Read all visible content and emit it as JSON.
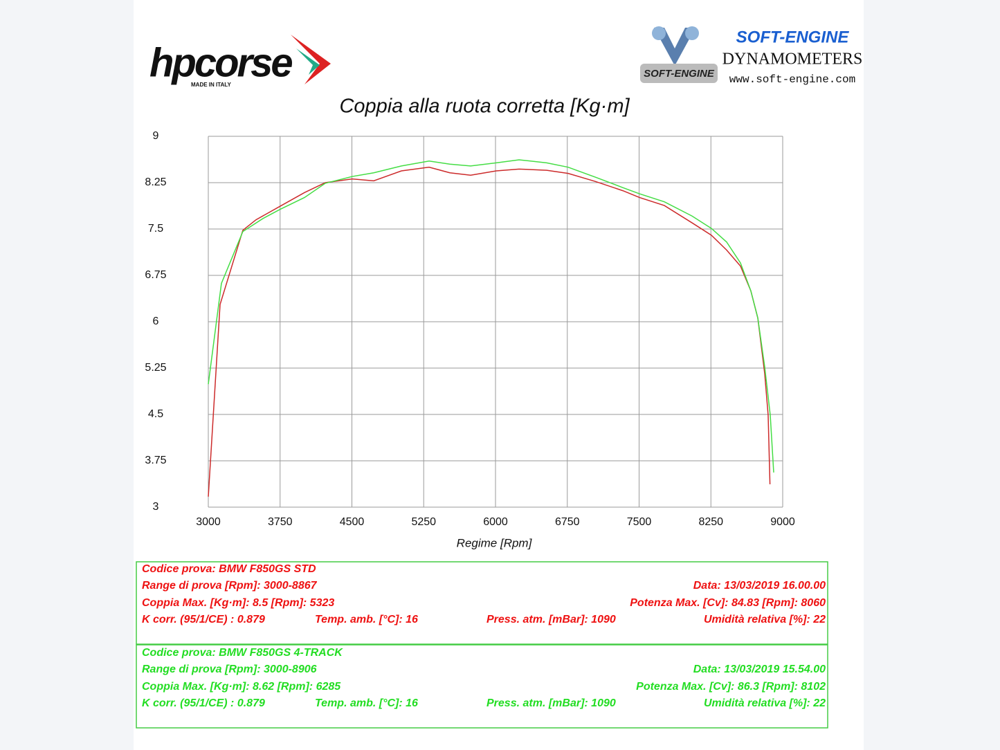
{
  "header": {
    "brand": "hpcorse",
    "brand_tagline": "MADE IN ITALY",
    "dyno_logo": "SOFT-ENGINE",
    "dyno_title": "DYNAMOMETERS",
    "dyno_url": "www.soft-engine.com",
    "dyno_badge": "SOFT-ENGINE"
  },
  "chart_data": {
    "type": "line",
    "title": "Coppia alla ruota corretta [Kg·m]",
    "x_label": "Regime [Rpm]",
    "xlim": [
      3000,
      9000
    ],
    "xticks": [
      3000,
      3750,
      4500,
      5250,
      6000,
      6750,
      7500,
      8250,
      9000
    ],
    "ylim": [
      3,
      9
    ],
    "yticks": [
      3,
      3.75,
      4.5,
      5.25,
      6,
      6.75,
      7.5,
      8.25,
      9
    ],
    "grid": true,
    "series": [
      {
        "color": "#cc2a2a",
        "x": [
          3000,
          3123,
          3361,
          3499,
          3752,
          4005,
          4222,
          4504,
          4728,
          5017,
          5306,
          5523,
          5740,
          6007,
          6246,
          6535,
          6759,
          7041,
          7330,
          7504,
          7764,
          8053,
          8255,
          8414,
          8559,
          8667,
          8740,
          8812,
          8848,
          8867
        ],
        "values": [
          3.17,
          6.28,
          7.48,
          7.65,
          7.87,
          8.09,
          8.25,
          8.31,
          8.28,
          8.44,
          8.5,
          8.41,
          8.37,
          8.44,
          8.47,
          8.45,
          8.4,
          8.27,
          8.12,
          8.01,
          7.88,
          7.6,
          7.4,
          7.16,
          6.9,
          6.5,
          6.06,
          5.16,
          4.49,
          3.37
        ]
      },
      {
        "color": "#44dd44",
        "x": [
          3000,
          3137,
          3361,
          3571,
          3752,
          4005,
          4222,
          4504,
          4728,
          5017,
          5306,
          5523,
          5740,
          6007,
          6246,
          6535,
          6759,
          7041,
          7330,
          7504,
          7764,
          8053,
          8255,
          8414,
          8559,
          8667,
          8740,
          8812,
          8870,
          8906
        ],
        "values": [
          4.99,
          6.62,
          7.46,
          7.67,
          7.82,
          8.01,
          8.24,
          8.35,
          8.41,
          8.52,
          8.6,
          8.55,
          8.52,
          8.57,
          8.62,
          8.57,
          8.5,
          8.34,
          8.17,
          8.07,
          7.94,
          7.71,
          7.51,
          7.29,
          6.95,
          6.5,
          6.06,
          5.27,
          4.49,
          3.56
        ]
      }
    ]
  },
  "tests": [
    {
      "color": "#ee1111",
      "code": "Codice prova: BMW F850GS STD",
      "range": "Range di prova [Rpm]: 3000-8867",
      "date": "Data: 13/03/2019   16.00.00",
      "torque": "Coppia Max. [Kg·m]: 8.5   [Rpm]: 5323",
      "power": "Potenza Max. [Cv]: 84.83   [Rpm]: 8060",
      "k_corr": "K corr. (95/1/CE) : 0.879",
      "temp": "Temp. amb. [°C]: 16",
      "pressure": "Press. atm. [mBar]: 1090",
      "humidity": "Umidità relativa [%]: 22"
    },
    {
      "color": "#22dd22",
      "code": "Codice prova: BMW F850GS 4-TRACK",
      "range": "Range di prova [Rpm]: 3000-8906",
      "date": "Data: 13/03/2019   15.54.00",
      "torque": "Coppia Max. [Kg·m]: 8.62   [Rpm]: 6285",
      "power": "Potenza Max. [Cv]: 86.3   [Rpm]: 8102",
      "k_corr": "K corr. (95/1/CE) : 0.879",
      "temp": "Temp. amb. [°C]: 16",
      "pressure": "Press. atm. [mBar]: 1090",
      "humidity": "Umidità relativa [%]: 22"
    }
  ]
}
